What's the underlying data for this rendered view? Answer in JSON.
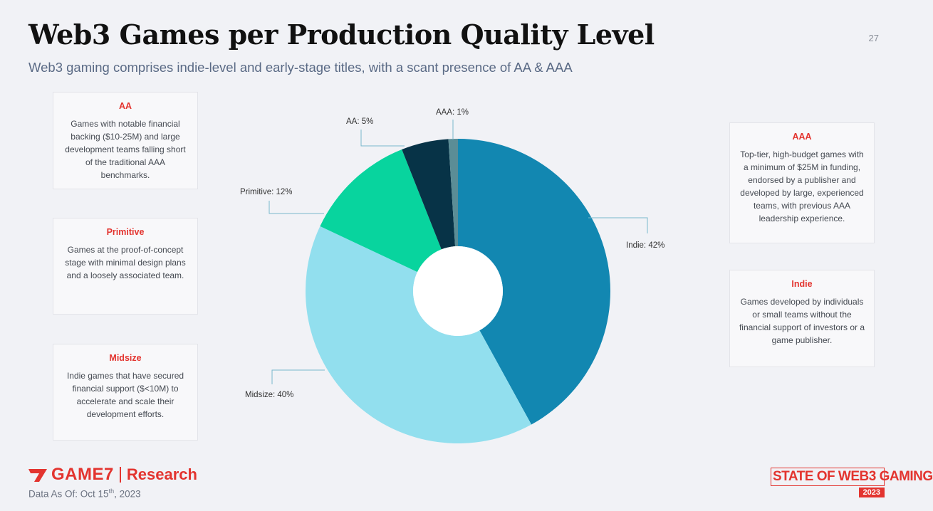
{
  "header": {
    "title": "Web3 Games per Production Quality Level",
    "subtitle": "Web3 gaming comprises indie-level and early-stage titles, with a scant presence of AA & AAA",
    "page_number": "27"
  },
  "cards": {
    "aa": {
      "title": "AA",
      "text": "Games with notable financial backing ($10-25M) and large development teams falling short of the traditional AAA benchmarks."
    },
    "primitive": {
      "title": "Primitive",
      "text": "Games at the proof-of-concept stage with minimal design plans and a loosely associated team."
    },
    "midsize": {
      "title": "Midsize",
      "text": "Indie games that have secured financial support ($<10M) to accelerate and scale their development efforts."
    },
    "aaa": {
      "title": "AAA",
      "text": "Top-tier, high-budget games with a minimum of $25M in funding, endorsed by a publisher and developed by large, experienced teams, with previous AAA leadership experience."
    },
    "indie": {
      "title": "Indie",
      "text": "Games developed by individuals or small teams without the financial support of investors or a game publisher."
    }
  },
  "chart_data": {
    "type": "pie",
    "title": "Web3 Games per Production Quality Level",
    "categories": [
      "Indie",
      "Midsize",
      "Primitive",
      "AA",
      "AAA"
    ],
    "values": [
      42,
      40,
      12,
      5,
      1
    ],
    "labels": [
      "Indie: 42%",
      "Midsize: 40%",
      "Primitive: 12%",
      "AA: 5%",
      "AAA: 1%"
    ],
    "colors": [
      "#1287b1",
      "#92dfee",
      "#08d49e",
      "#073347",
      "#5b8d96"
    ],
    "unit": "%"
  },
  "footer": {
    "brand": "GAME7",
    "division": "Research",
    "data_as_of_prefix": "Data As Of: Oct 15",
    "data_as_of_suffix": "th",
    "data_as_of_year": ", 2023",
    "badge_line1": "STATE OF WEB3 GAMING",
    "badge_line2": "2023",
    "brand_color": "#e3342f"
  }
}
